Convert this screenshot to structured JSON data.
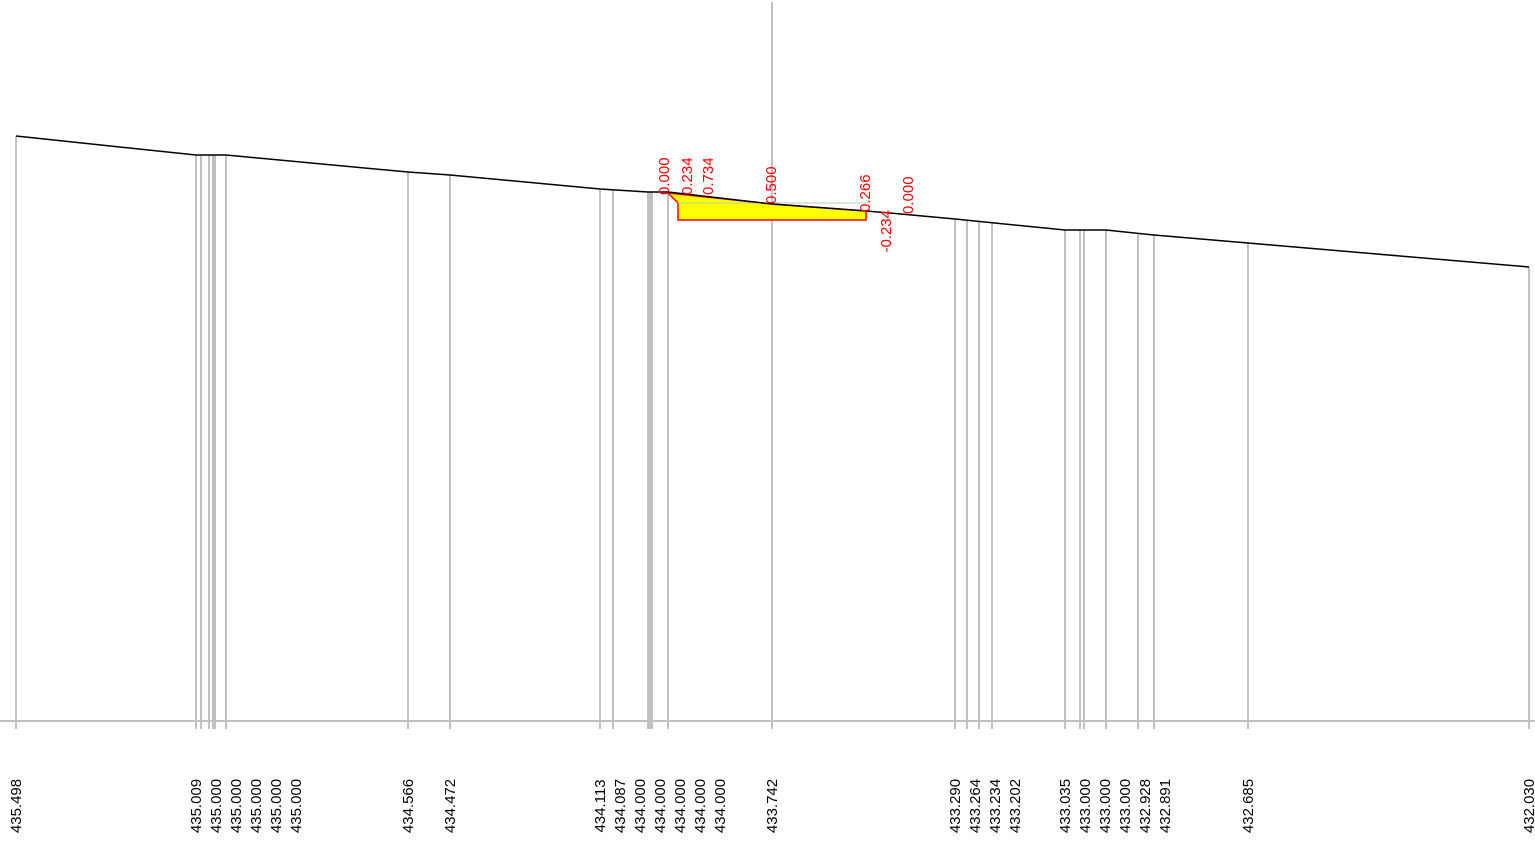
{
  "colors": {
    "background": "#ffffff",
    "grid": "#c0c0c0",
    "terrain": "#000000",
    "annotation": "#ff0000",
    "fill": "#ffff00"
  },
  "chart_data": {
    "type": "line",
    "title": "",
    "xlabel": "",
    "ylabel": "",
    "elevation_labels": [
      "435.498",
      "435.009",
      "435.000",
      "435.000",
      "435.000",
      "435.000",
      "435.000",
      "434.566",
      "434.472",
      "434.113",
      "434.087",
      "434.000",
      "434.000",
      "434.000",
      "434.000",
      "434.000",
      "433.742",
      "433.290",
      "433.264",
      "433.234",
      "433.202",
      "433.035",
      "433.000",
      "433.000",
      "433.000",
      "432.928",
      "432.891",
      "432.685",
      "432.030"
    ],
    "excavation_labels": [
      "0.000",
      "0.234",
      "0.734",
      "0.500",
      "0.266",
      "-0.234",
      "0.000"
    ]
  }
}
